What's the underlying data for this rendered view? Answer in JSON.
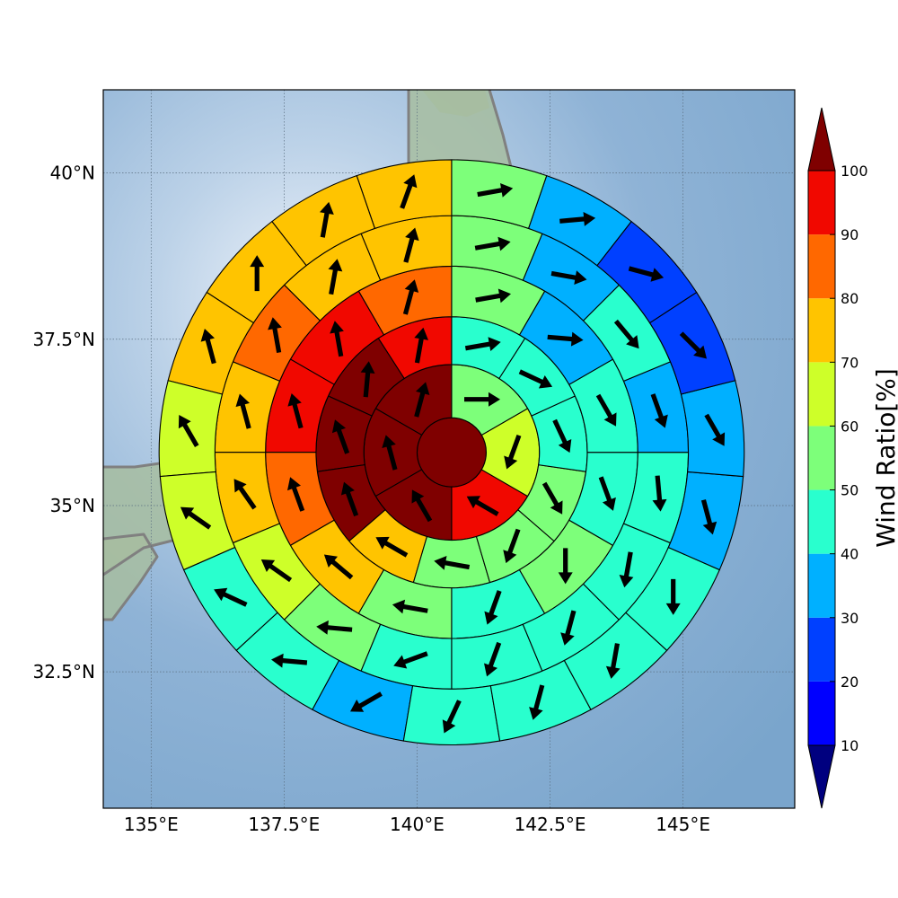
{
  "chart_data": {
    "type": "heatmap",
    "subtype": "polar-sector-wind-ratio-map",
    "title": "",
    "colorbar": {
      "label": "Wind Ratio[%]",
      "ticks": [
        10,
        20,
        30,
        40,
        50,
        60,
        70,
        80,
        90,
        100
      ],
      "tick_labels": [
        "10",
        "20",
        "30",
        "40",
        "50",
        "60",
        "70",
        "80",
        "90",
        "100"
      ],
      "bins": [
        {
          "from": 0,
          "to": 10,
          "color": "#00007f"
        },
        {
          "from": 10,
          "to": 20,
          "color": "#0000ff"
        },
        {
          "from": 20,
          "to": 30,
          "color": "#0040ff"
        },
        {
          "from": 30,
          "to": 40,
          "color": "#00b0ff"
        },
        {
          "from": 40,
          "to": 50,
          "color": "#29ffce"
        },
        {
          "from": 50,
          "to": 60,
          "color": "#7dff7a"
        },
        {
          "from": 60,
          "to": 70,
          "color": "#ceff29"
        },
        {
          "from": 70,
          "to": 80,
          "color": "#ffc400"
        },
        {
          "from": 80,
          "to": 90,
          "color": "#ff6800"
        },
        {
          "from": 90,
          "to": 100,
          "color": "#f10800"
        },
        {
          "from": 100,
          "to": 110,
          "color": "#7f0000"
        }
      ],
      "extend": "both"
    },
    "xaxis": {
      "ticks": [
        135,
        137.5,
        140,
        142.5,
        145
      ],
      "tick_labels": [
        "135°E",
        "137.5°E",
        "140°E",
        "142.5°E",
        "145°E"
      ],
      "range": [
        134.1,
        147.1
      ]
    },
    "yaxis": {
      "ticks": [
        32.5,
        35,
        37.5,
        40
      ],
      "tick_labels": [
        "32.5°N",
        "35°N",
        "37.5°N",
        "40°N"
      ],
      "range": [
        30.45,
        41.25
      ]
    },
    "grid": true,
    "center": {
      "lon": 140.65,
      "lat": 35.8
    },
    "ring_radii_deg": [
      0.65,
      1.65,
      2.55,
      3.5,
      4.45,
      5.5
    ],
    "center_cell": {
      "value": 105,
      "arrow": null
    },
    "rings": [
      {
        "sectors": [
          {
            "value": 105,
            "arrow_dir": 15
          },
          {
            "value": 105,
            "arrow_dir": 345
          },
          {
            "value": 105,
            "arrow_dir": 330
          },
          {
            "value": 90,
            "arrow_dir": 300
          },
          {
            "value": 60,
            "arrow_dir": 200
          },
          {
            "value": 55,
            "arrow_dir": 90
          }
        ]
      },
      {
        "sectors": [
          {
            "value": 95,
            "arrow_dir": 10
          },
          {
            "value": 105,
            "arrow_dir": 5
          },
          {
            "value": 105,
            "arrow_dir": 340
          },
          {
            "value": 105,
            "arrow_dir": 340
          },
          {
            "value": 75,
            "arrow_dir": 300
          },
          {
            "value": 55,
            "arrow_dir": 280
          },
          {
            "value": 55,
            "arrow_dir": 200
          },
          {
            "value": 55,
            "arrow_dir": 150
          },
          {
            "value": 45,
            "arrow_dir": 155
          },
          {
            "value": 45,
            "arrow_dir": 115
          },
          {
            "value": 45,
            "arrow_dir": 80
          }
        ]
      },
      {
        "sectors": [
          {
            "value": 85,
            "arrow_dir": 15
          },
          {
            "value": 95,
            "arrow_dir": 350
          },
          {
            "value": 95,
            "arrow_dir": 345
          },
          {
            "value": 85,
            "arrow_dir": 340
          },
          {
            "value": 75,
            "arrow_dir": 310
          },
          {
            "value": 55,
            "arrow_dir": 280
          },
          {
            "value": 45,
            "arrow_dir": 200
          },
          {
            "value": 55,
            "arrow_dir": 180
          },
          {
            "value": 45,
            "arrow_dir": 160
          },
          {
            "value": 45,
            "arrow_dir": 150
          },
          {
            "value": 35,
            "arrow_dir": 95
          },
          {
            "value": 55,
            "arrow_dir": 80
          }
        ]
      },
      {
        "sectors": [
          {
            "value": 75,
            "arrow_dir": 15
          },
          {
            "value": 75,
            "arrow_dir": 10
          },
          {
            "value": 85,
            "arrow_dir": 350
          },
          {
            "value": 75,
            "arrow_dir": 345
          },
          {
            "value": 75,
            "arrow_dir": 325
          },
          {
            "value": 65,
            "arrow_dir": 305
          },
          {
            "value": 55,
            "arrow_dir": 275
          },
          {
            "value": 45,
            "arrow_dir": 250
          },
          {
            "value": 45,
            "arrow_dir": 200
          },
          {
            "value": 45,
            "arrow_dir": 195
          },
          {
            "value": 45,
            "arrow_dir": 190
          },
          {
            "value": 45,
            "arrow_dir": 175
          },
          {
            "value": 35,
            "arrow_dir": 160
          },
          {
            "value": 45,
            "arrow_dir": 140
          },
          {
            "value": 35,
            "arrow_dir": 100
          },
          {
            "value": 55,
            "arrow_dir": 80
          }
        ]
      },
      {
        "sectors": [
          {
            "value": 75,
            "arrow_dir": 20
          },
          {
            "value": 75,
            "arrow_dir": 10
          },
          {
            "value": 75,
            "arrow_dir": 0
          },
          {
            "value": 75,
            "arrow_dir": 345
          },
          {
            "value": 65,
            "arrow_dir": 330
          },
          {
            "value": 65,
            "arrow_dir": 305
          },
          {
            "value": 45,
            "arrow_dir": 295
          },
          {
            "value": 45,
            "arrow_dir": 275
          },
          {
            "value": 35,
            "arrow_dir": 240
          },
          {
            "value": 45,
            "arrow_dir": 205
          },
          {
            "value": 45,
            "arrow_dir": 195
          },
          {
            "value": 45,
            "arrow_dir": 190
          },
          {
            "value": 45,
            "arrow_dir": 180
          },
          {
            "value": 35,
            "arrow_dir": 165
          },
          {
            "value": 35,
            "arrow_dir": 150
          },
          {
            "value": 25,
            "arrow_dir": 135
          },
          {
            "value": 25,
            "arrow_dir": 105
          },
          {
            "value": 35,
            "arrow_dir": 85
          },
          {
            "value": 55,
            "arrow_dir": 80
          }
        ]
      },
      {
        "sectors": [
          {
            "value": 55,
            "arrow_dir": 30
          },
          {
            "value": 65,
            "arrow_dir": 15
          },
          {
            "value": 65,
            "arrow_dir": 5
          },
          {
            "value": 65,
            "arrow_dir": 355
          },
          {
            "value": 65,
            "arrow_dir": 345
          },
          {
            "value": 65,
            "arrow_dir": 335
          },
          {
            "value": 55,
            "arrow_dir": 320
          },
          {
            "value": 45,
            "arrow_dir": 300
          },
          {
            "value": 35,
            "arrow_dir": 285
          },
          {
            "value": 35,
            "arrow_dir": 255
          },
          {
            "value": 35,
            "arrow_dir": 245
          },
          {
            "value": 35,
            "arrow_dir": 210
          },
          {
            "value": 35,
            "arrow_dir": 200
          },
          {
            "value": 35,
            "arrow_dir": 195
          },
          {
            "value": 35,
            "arrow_dir": 180
          },
          {
            "value": 35,
            "arrow_dir": 160
          },
          {
            "value": 35,
            "arrow_dir": 145
          },
          {
            "value": 35,
            "arrow_dir": 120
          },
          {
            "value": 25,
            "arrow_dir": 100
          },
          {
            "value": 35,
            "arrow_dir": 85
          },
          {
            "value": 45,
            "arrow_dir": 80
          }
        ]
      }
    ]
  },
  "colors": {
    "ocean_light": "#e6eef7",
    "ocean_dark": "#7aa5cc",
    "land": "#9cb89c",
    "coastline": "#808080",
    "gridline": "#5a6e80",
    "cell_edge": "#000000",
    "arrow": "#000000"
  }
}
